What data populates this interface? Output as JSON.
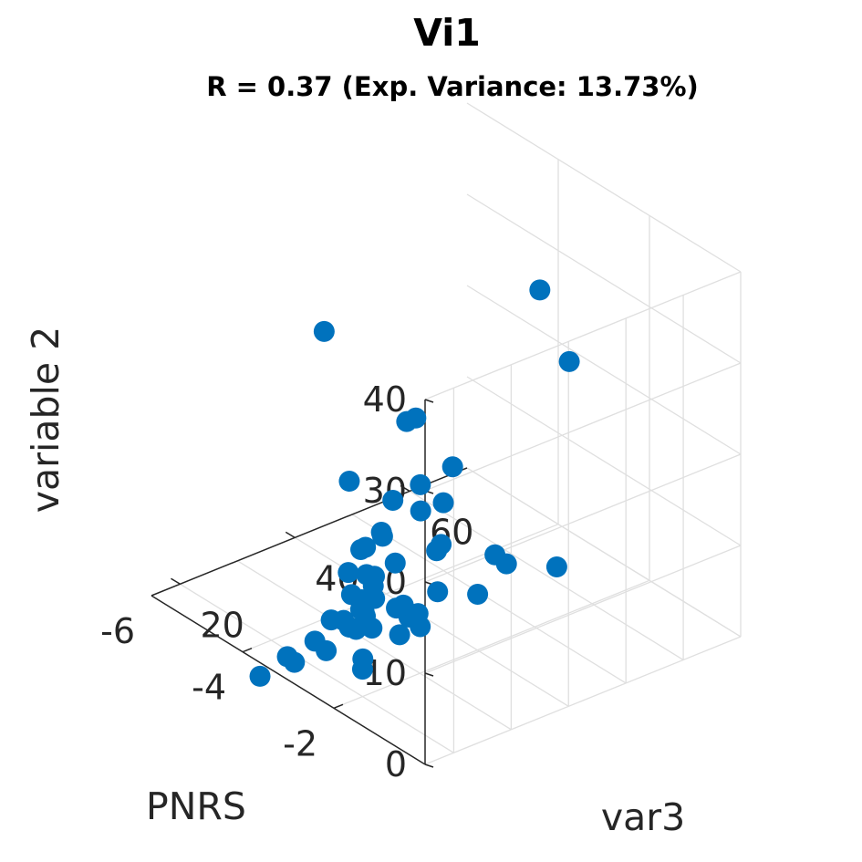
{
  "chart_data": {
    "type": "scatter",
    "title": "Vi1",
    "subtitle": "R = 0.37 (Exp. Variance: 13.73%)",
    "xlabel": "var3",
    "ylabel": "PNRS",
    "zlabel": "variable 2",
    "xlim": [
      15,
      70
    ],
    "ylim": [
      -6,
      0
    ],
    "zlim": [
      0,
      40
    ],
    "xticks": [
      "20",
      "40",
      "60"
    ],
    "yticks": [
      "-2",
      "-4",
      "-6"
    ],
    "zticks": [
      "0",
      "10",
      "20",
      "30",
      "40"
    ],
    "grid": true,
    "marker_color": "#0072BD",
    "series": [
      {
        "points": [
          {
            "x": 30,
            "y": -4.1,
            "z": 31
          },
          {
            "x": 66,
            "y": -3.9,
            "z": 27
          },
          {
            "x": 60,
            "y": -2.5,
            "z": 25
          },
          {
            "x": 42,
            "y": -3.6,
            "z": 20
          },
          {
            "x": 42,
            "y": -3.8,
            "z": 19
          },
          {
            "x": 32,
            "y": -3.8,
            "z": 15
          },
          {
            "x": 42,
            "y": -3.5,
            "z": 13
          },
          {
            "x": 38,
            "y": -3.6,
            "z": 12
          },
          {
            "x": 50,
            "y": -3.8,
            "z": 12
          },
          {
            "x": 46,
            "y": -3.5,
            "z": 10
          },
          {
            "x": 36,
            "y": -3.6,
            "z": 9
          },
          {
            "x": 37,
            "y": -3.7,
            "z": 8
          },
          {
            "x": 34,
            "y": -3.8,
            "z": 7
          },
          {
            "x": 34,
            "y": -3.5,
            "z": 5
          },
          {
            "x": 33,
            "y": -3.4,
            "z": 4.5
          },
          {
            "x": 30,
            "y": -3.5,
            "z": 4
          },
          {
            "x": 31,
            "y": -3.4,
            "z": 3.5
          },
          {
            "x": 30,
            "y": -3.3,
            "z": 3
          },
          {
            "x": 35,
            "y": -3.8,
            "z": 4
          },
          {
            "x": 20,
            "y": -2.0,
            "z": 3
          },
          {
            "x": 40,
            "y": -3.8,
            "z": 4
          },
          {
            "x": 48,
            "y": -3.8,
            "z": 4
          },
          {
            "x": 48,
            "y": -3.9,
            "z": 3
          },
          {
            "x": 61,
            "y": -2.9,
            "z": 1
          },
          {
            "x": 35,
            "y": -4.2,
            "z": 3
          },
          {
            "x": 28,
            "y": -2.8,
            "z": 3
          },
          {
            "x": 38,
            "y": -3.0,
            "z": 0
          },
          {
            "x": 40,
            "y": -3.3,
            "z": 0
          },
          {
            "x": 45,
            "y": -3.5,
            "z": 0.5
          },
          {
            "x": 48,
            "y": -3.0,
            "z": 1
          },
          {
            "x": 55,
            "y": -3.5,
            "z": 2
          },
          {
            "x": 57,
            "y": -3.5,
            "z": 0.5
          },
          {
            "x": 33,
            "y": -3.6,
            "z": 1
          },
          {
            "x": 30,
            "y": -3.4,
            "z": 0.5
          },
          {
            "x": 31,
            "y": -3.8,
            "z": 0
          },
          {
            "x": 34,
            "y": -3.7,
            "z": 0
          },
          {
            "x": 38,
            "y": -4.0,
            "z": 0
          },
          {
            "x": 36,
            "y": -3.2,
            "z": -1
          },
          {
            "x": 32,
            "y": -3.8,
            "z": -1
          },
          {
            "x": 24,
            "y": -3.3,
            "z": 0
          },
          {
            "x": 26,
            "y": -3.8,
            "z": -1
          },
          {
            "x": 40,
            "y": -3.5,
            "z": -1
          },
          {
            "x": 28,
            "y": -3.0,
            "z": -1
          },
          {
            "x": 22,
            "y": -3.9,
            "z": -2
          },
          {
            "x": 41,
            "y": -3.9,
            "z": -1.5
          },
          {
            "x": 43,
            "y": -4.0,
            "z": -2
          },
          {
            "x": 36,
            "y": -4.7,
            "z": -4
          },
          {
            "x": 28,
            "y": -4.5,
            "z": -6
          },
          {
            "x": 22,
            "y": -4.5,
            "z": -6
          },
          {
            "x": 38,
            "y": -4.2,
            "z": 5
          },
          {
            "x": 50,
            "y": -4.5,
            "z": 5
          }
        ]
      }
    ]
  }
}
